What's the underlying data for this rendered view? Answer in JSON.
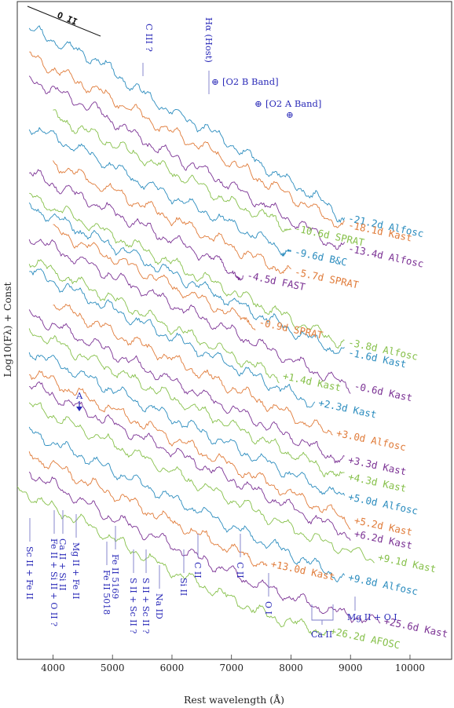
{
  "chart_data": {
    "type": "line",
    "xlabel": "Rest wavelength (Å)",
    "ylabel": "Log10(Fλ) + Const",
    "xlim": [
      3400,
      10700
    ],
    "x_ticks": [
      4000,
      5000,
      6000,
      7000,
      8000,
      9000,
      10000
    ],
    "grid": false,
    "series": [
      {
        "name": "-21.2d Alfosc",
        "color": "#2b8cbe",
        "x": [
          3600,
          4200,
          4800,
          5400,
          6000,
          6600,
          7200,
          7800,
          8400,
          8900
        ],
        "y": [
          12.2,
          11.95,
          11.7,
          11.3,
          10.95,
          10.7,
          10.35,
          10.0,
          9.7,
          9.35
        ]
      },
      {
        "name": "-18.1d Kast",
        "color": "#e07b39",
        "x": [
          3600,
          4200,
          4800,
          5400,
          6000,
          6600,
          7200,
          7800,
          8400,
          8900
        ],
        "y": [
          11.8,
          11.5,
          11.25,
          10.95,
          10.65,
          10.4,
          10.1,
          9.8,
          9.5,
          9.25
        ]
      },
      {
        "name": "-13.4d Alfosc",
        "color": "#7b3294",
        "x": [
          3600,
          4200,
          4800,
          5400,
          6000,
          6600,
          7200,
          7800,
          8400,
          8900
        ],
        "y": [
          11.45,
          11.2,
          10.95,
          10.6,
          10.3,
          10.05,
          9.75,
          9.45,
          9.15,
          8.9
        ]
      },
      {
        "name": "-10.6d SPRAT",
        "color": "#86c04a",
        "x": [
          4000,
          4600,
          5200,
          5800,
          6400,
          7000,
          7600,
          8000
        ],
        "y": [
          10.9,
          10.65,
          10.4,
          10.15,
          9.9,
          9.6,
          9.4,
          9.2
        ]
      },
      {
        "name": "-9.6d B&C",
        "color": "#2b8cbe",
        "x": [
          3600,
          4200,
          4800,
          5400,
          6000,
          6600,
          7200,
          7800,
          8000
        ],
        "y": [
          10.75,
          10.5,
          10.25,
          9.95,
          9.7,
          9.45,
          9.2,
          8.95,
          8.85
        ]
      },
      {
        "name": "-5.7d SPRAT",
        "color": "#e07b39",
        "x": [
          4000,
          4600,
          5200,
          5800,
          6400,
          7000,
          7600,
          8000
        ],
        "y": [
          10.2,
          9.95,
          9.7,
          9.45,
          9.2,
          8.95,
          8.7,
          8.55
        ]
      },
      {
        "name": "-4.5d FAST",
        "color": "#7b3294",
        "x": [
          3600,
          4200,
          4800,
          5400,
          6000,
          6600,
          7000,
          7200
        ],
        "y": [
          10.05,
          9.8,
          9.55,
          9.3,
          9.05,
          8.8,
          8.6,
          8.5
        ]
      },
      {
        "name": "-3.8d Alfosc",
        "color": "#86c04a",
        "x": [
          3600,
          4200,
          4800,
          5400,
          6000,
          6600,
          7200,
          7800,
          8400,
          8900
        ],
        "y": [
          9.7,
          9.45,
          9.2,
          8.95,
          8.7,
          8.45,
          8.2,
          7.95,
          7.7,
          7.5
        ]
      },
      {
        "name": "-1.6d Kast",
        "color": "#2b8cbe",
        "x": [
          3600,
          4200,
          4800,
          5400,
          6000,
          6600,
          7200,
          7800,
          8400,
          8900
        ],
        "y": [
          9.55,
          9.3,
          9.05,
          8.8,
          8.55,
          8.3,
          8.05,
          7.8,
          7.55,
          7.35
        ]
      },
      {
        "name": "-0.9d SPRAT",
        "color": "#e07b39",
        "x": [
          4000,
          4600,
          5200,
          5800,
          6400,
          7000,
          7400
        ],
        "y": [
          9.2,
          8.95,
          8.7,
          8.45,
          8.2,
          7.95,
          7.8
        ]
      },
      {
        "name": "-0.6d Kast",
        "color": "#7b3294",
        "x": [
          3600,
          4200,
          4800,
          5400,
          6000,
          6600,
          7200,
          7800,
          8400,
          9000
        ],
        "y": [
          9.1,
          8.85,
          8.6,
          8.35,
          8.1,
          7.85,
          7.6,
          7.35,
          7.1,
          6.85
        ]
      },
      {
        "name": "+1.4d Kast",
        "color": "#86c04a",
        "x": [
          3600,
          4200,
          4800,
          5400,
          6000,
          6600,
          7200,
          7800
        ],
        "y": [
          8.75,
          8.5,
          8.25,
          8.0,
          7.75,
          7.5,
          7.25,
          7.0
        ]
      },
      {
        "name": "+2.3d Kast",
        "color": "#2b8cbe",
        "x": [
          3600,
          4200,
          4800,
          5400,
          6000,
          6600,
          7200,
          7800,
          8400
        ],
        "y": [
          8.6,
          8.35,
          8.1,
          7.85,
          7.6,
          7.35,
          7.1,
          6.85,
          6.6
        ]
      },
      {
        "name": "+3.0d Alfosc",
        "color": "#e07b39",
        "x": [
          4000,
          4600,
          5200,
          5800,
          6400,
          7000,
          7600,
          8200,
          8700
        ],
        "y": [
          8.1,
          7.85,
          7.6,
          7.35,
          7.1,
          6.85,
          6.6,
          6.35,
          6.15
        ]
      },
      {
        "name": "+3.3d Kast",
        "color": "#7b3294",
        "x": [
          3600,
          4200,
          4800,
          5400,
          6000,
          6600,
          7200,
          7800,
          8400,
          8900
        ],
        "y": [
          7.95,
          7.7,
          7.45,
          7.2,
          6.95,
          6.7,
          6.45,
          6.2,
          5.95,
          5.75
        ]
      },
      {
        "name": "+4.3d Kast",
        "color": "#86c04a",
        "x": [
          3600,
          4200,
          4800,
          5400,
          6000,
          6600,
          7200,
          7800,
          8400,
          8900
        ],
        "y": [
          7.7,
          7.45,
          7.2,
          6.95,
          6.7,
          6.45,
          6.2,
          5.95,
          5.7,
          5.5
        ]
      },
      {
        "name": "+5.0d Alfosc",
        "color": "#2b8cbe",
        "x": [
          3600,
          4200,
          4800,
          5400,
          6000,
          6600,
          7200,
          7800,
          8400,
          8900
        ],
        "y": [
          7.4,
          7.15,
          6.9,
          6.65,
          6.4,
          6.15,
          5.9,
          5.65,
          5.4,
          5.2
        ]
      },
      {
        "name": "+5.2d Kast",
        "color": "#e07b39",
        "x": [
          3600,
          4200,
          4800,
          5400,
          6000,
          6600,
          7200,
          7800,
          8400,
          9000
        ],
        "y": [
          7.1,
          6.85,
          6.6,
          6.35,
          6.1,
          5.85,
          5.6,
          5.35,
          5.1,
          4.85
        ]
      },
      {
        "name": "+6.2d Kast",
        "color": "#7b3294",
        "x": [
          3600,
          4200,
          4800,
          5400,
          6000,
          6600,
          7200,
          7800,
          8400,
          9000
        ],
        "y": [
          6.9,
          6.65,
          6.4,
          6.15,
          5.9,
          5.65,
          5.4,
          5.15,
          4.9,
          4.65
        ]
      },
      {
        "name": "+9.1d Kast",
        "color": "#86c04a",
        "x": [
          3600,
          4200,
          4800,
          5400,
          6000,
          6600,
          7200,
          7800,
          8400,
          9400
        ],
        "y": [
          6.6,
          6.35,
          6.1,
          5.85,
          5.6,
          5.35,
          5.1,
          4.85,
          4.6,
          4.3
        ]
      },
      {
        "name": "+9.8d Alfosc",
        "color": "#2b8cbe",
        "x": [
          3600,
          4200,
          4800,
          5400,
          6000,
          6600,
          7200,
          7800,
          8400,
          8900
        ],
        "y": [
          6.2,
          5.95,
          5.7,
          5.45,
          5.2,
          4.95,
          4.7,
          4.45,
          4.2,
          4.0
        ]
      },
      {
        "name": "+13.0d Kast",
        "color": "#e07b39",
        "x": [
          3600,
          4200,
          4800,
          5400,
          6000,
          6600,
          7200,
          7600
        ],
        "y": [
          5.85,
          5.6,
          5.35,
          5.1,
          4.85,
          4.6,
          4.35,
          4.2
        ]
      },
      {
        "name": "+25.6d Kast",
        "color": "#7b3294",
        "x": [
          3600,
          4200,
          4800,
          5400,
          6000,
          6600,
          7200,
          7800,
          8400,
          9000,
          9500
        ],
        "y": [
          5.6,
          5.3,
          5.0,
          4.75,
          4.5,
          4.25,
          4.0,
          3.8,
          3.6,
          3.45,
          3.35
        ]
      },
      {
        "name": "+26.2d AFOSC",
        "color": "#86c04a",
        "x": [
          3400,
          4000,
          4600,
          5200,
          5800,
          6400,
          7000,
          7600,
          8200,
          8600
        ],
        "y": [
          5.35,
          5.05,
          4.8,
          4.5,
          4.2,
          3.95,
          3.7,
          3.45,
          3.3,
          3.2
        ]
      }
    ],
    "line_ids": [
      "Sc II + Fe II",
      "Fe II + Si II + O II ?",
      "Ca II + Si II",
      "Mg II + Fe II",
      "Fe II 5018",
      "Fe II 5169",
      "S II + Sc II ?",
      "S II + Sc II ?",
      "Na ID",
      "Si II",
      "C II",
      "C II",
      "O I",
      "Ca II",
      "Mg II + O I"
    ],
    "annotations": {
      "o2_label": "O II",
      "c3_label": "C III ?",
      "halpha_label": "Hα (Host)",
      "o2b_label": "[O2 B Band]",
      "o2a_label": "[O2 A Band]",
      "a_marker": "A"
    }
  }
}
